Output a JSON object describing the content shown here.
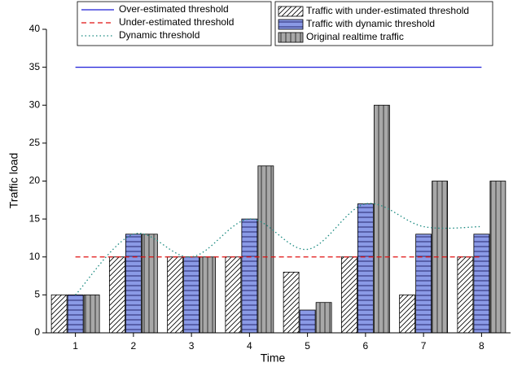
{
  "chart_data": {
    "type": "bar",
    "x_label": "Time",
    "y_label": "Traffic load",
    "categories": [
      "1",
      "2",
      "3",
      "4",
      "5",
      "6",
      "7",
      "8"
    ],
    "ylim": [
      0,
      40
    ],
    "yticks": [
      0,
      5,
      10,
      15,
      20,
      25,
      30,
      35,
      40
    ],
    "series": [
      {
        "name": "Over-estimated threshold",
        "type": "line",
        "style": "solid",
        "color": "#1f1fd8",
        "values": [
          35,
          35,
          35,
          35,
          35,
          35,
          35,
          35
        ]
      },
      {
        "name": "Under-estimated threshold",
        "type": "line",
        "style": "dashed",
        "color": "#e01010",
        "values": [
          10,
          10,
          10,
          10,
          10,
          10,
          10,
          10
        ]
      },
      {
        "name": "Dynamic threshold",
        "type": "line",
        "style": "dotted",
        "color": "#1a8a80",
        "values": [
          5,
          13,
          10,
          15,
          11,
          17,
          14,
          14
        ]
      },
      {
        "name": "Traffic with under-estimated threshold",
        "type": "bar",
        "pattern": "diagonal",
        "color": "#ffffff",
        "values": [
          5,
          10,
          10,
          10,
          8,
          10,
          5,
          10
        ]
      },
      {
        "name": "Traffic with dynamic threshold",
        "type": "bar",
        "pattern": "horizontal",
        "color": "#8a9ae6",
        "values": [
          5,
          13,
          10,
          15,
          3,
          17,
          13,
          13
        ]
      },
      {
        "name": "Original realtime traffic",
        "type": "bar",
        "pattern": "vertical",
        "color": "#a8a8a8",
        "values": [
          5,
          13,
          10,
          22,
          4,
          30,
          20,
          20
        ]
      }
    ]
  }
}
